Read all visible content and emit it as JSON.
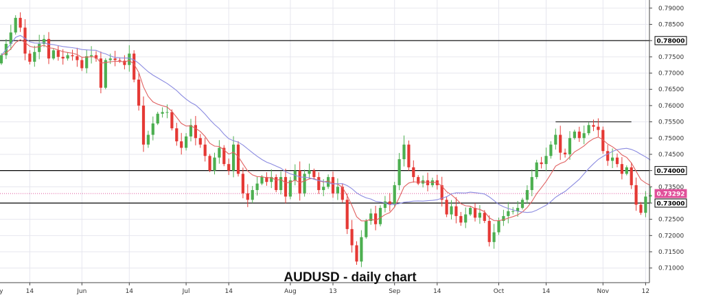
{
  "chart_data": {
    "type": "candlestick",
    "title": "AUDUSD - daily chart",
    "ylim": [
      0.7055,
      0.7925
    ],
    "y_ticks": [
      "0.79000",
      "0.78500",
      "0.78000",
      "0.77500",
      "0.77000",
      "0.76500",
      "0.76000",
      "0.75500",
      "0.75000",
      "0.74500",
      "0.74000",
      "0.73500",
      "0.73000",
      "0.72500",
      "0.72000",
      "0.71500",
      "0.71000"
    ],
    "x_tick_labels": [
      {
        "index": -1,
        "label": "May"
      },
      {
        "index": 6,
        "label": "14"
      },
      {
        "index": 17,
        "label": "Jun"
      },
      {
        "index": 27,
        "label": "14"
      },
      {
        "index": 39,
        "label": "Jul"
      },
      {
        "index": 48,
        "label": "14"
      },
      {
        "index": 61,
        "label": "Aug"
      },
      {
        "index": 70,
        "label": "13"
      },
      {
        "index": 83,
        "label": "Sep"
      },
      {
        "index": 92,
        "label": "14"
      },
      {
        "index": 105,
        "label": "Oct"
      },
      {
        "index": 115,
        "label": "14"
      },
      {
        "index": 127,
        "label": "Nov"
      },
      {
        "index": 136,
        "label": "12"
      }
    ],
    "closes": [
      0.7755,
      0.779,
      0.7825,
      0.787,
      0.784,
      0.776,
      0.7735,
      0.7765,
      0.779,
      0.7805,
      0.7745,
      0.777,
      0.775,
      0.7745,
      0.7755,
      0.7752,
      0.774,
      0.7715,
      0.7752,
      0.7755,
      0.7745,
      0.7655,
      0.774,
      0.7745,
      0.774,
      0.7738,
      0.7725,
      0.776,
      0.768,
      0.76,
      0.748,
      0.751,
      0.7545,
      0.7575,
      0.758,
      0.758,
      0.753,
      0.749,
      0.747,
      0.7505,
      0.754,
      0.75,
      0.748,
      0.7445,
      0.74,
      0.744,
      0.747,
      0.742,
      0.74,
      0.748,
      0.739,
      0.733,
      0.731,
      0.734,
      0.736,
      0.738,
      0.7365,
      0.738,
      0.734,
      0.738,
      0.732,
      0.737,
      0.74,
      0.733,
      0.739,
      0.74,
      0.738,
      0.734,
      0.735,
      0.738,
      0.733,
      0.735,
      0.731,
      0.722,
      0.717,
      0.712,
      0.7195,
      0.7245,
      0.7268,
      0.7235,
      0.7285,
      0.7305,
      0.7295,
      0.7355,
      0.7435,
      0.748,
      0.741,
      0.738,
      0.736,
      0.737,
      0.7355,
      0.737,
      0.7355,
      0.731,
      0.7265,
      0.729,
      0.726,
      0.724,
      0.7265,
      0.7285,
      0.7255,
      0.727,
      0.7245,
      0.718,
      0.721,
      0.7245,
      0.726,
      0.7275,
      0.7275,
      0.7285,
      0.731,
      0.734,
      0.738,
      0.7425,
      0.742,
      0.7445,
      0.748,
      0.751,
      0.7455,
      0.745,
      0.75,
      0.752,
      0.75,
      0.7515,
      0.754,
      0.7535,
      0.7525,
      0.746,
      0.743,
      0.744,
      0.742,
      0.739,
      0.741,
      0.7355,
      0.7295,
      0.727,
      0.732,
      0.7325
    ],
    "series": [
      {
        "name": "",
        "role": "fast moving average",
        "color": "#e06060"
      },
      {
        "name": "",
        "role": "slow moving average",
        "color": "#8a8ae0"
      }
    ],
    "horizontal_lines": [
      {
        "price": 0.78,
        "label": "0.78000",
        "color": "#000000"
      },
      {
        "price": 0.74,
        "label": "0.74000",
        "color": "#000000"
      },
      {
        "price": 0.73,
        "label": "0.73000",
        "color": "#000000"
      }
    ],
    "segments": [
      {
        "from_index": 117,
        "to_index": 133,
        "price": 0.755,
        "color": "#000000"
      }
    ],
    "current_price": {
      "price": 0.73292,
      "label": "0.73292",
      "color": "#e0509a"
    },
    "colors": {
      "up": "#4caf50",
      "down": "#e53935",
      "grid": "#e6e6ee",
      "axis": "#444444"
    }
  }
}
